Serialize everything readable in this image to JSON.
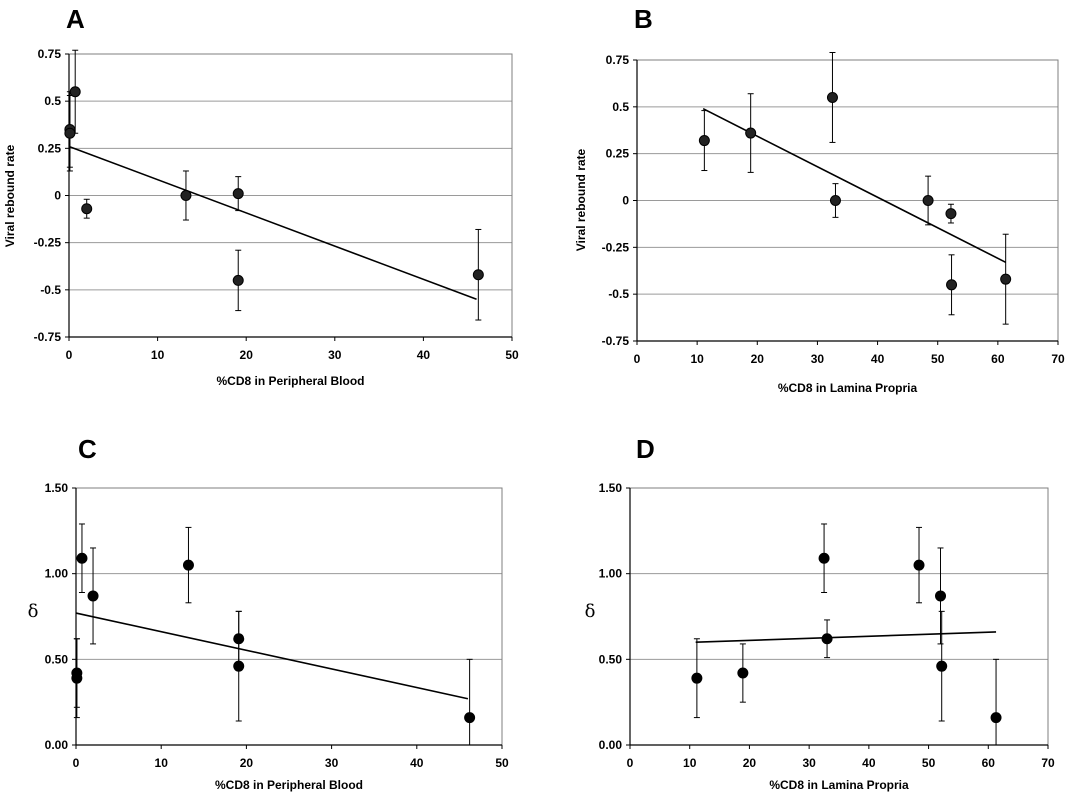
{
  "chart_data": [
    {
      "panel": "A",
      "type": "scatter",
      "xlabel": "%CD8 in Peripheral Blood",
      "ylabel": "Viral rebound rate",
      "xlim": [
        0,
        50
      ],
      "ylim": [
        -0.75,
        0.75
      ],
      "xticks": [
        0,
        10,
        20,
        30,
        40,
        50
      ],
      "xtick_labels": [
        "0",
        "10",
        "20",
        "30",
        "40",
        "50"
      ],
      "yticks": [
        -0.75,
        -0.5,
        -0.25,
        0,
        0.25,
        0.5,
        0.75
      ],
      "ytick_labels": [
        "-0.75",
        "-0.5",
        "-0.25",
        "0",
        "0.25",
        "0.5",
        "0.75"
      ],
      "grid": "horizontal",
      "points": [
        {
          "x": 0.1,
          "y": 0.35,
          "err": 0.2
        },
        {
          "x": 0.1,
          "y": 0.33,
          "err": 0.2
        },
        {
          "x": 0.7,
          "y": 0.55,
          "err": 0.22
        },
        {
          "x": 2.0,
          "y": -0.07,
          "err": 0.05
        },
        {
          "x": 13.2,
          "y": 0.0,
          "err": 0.13
        },
        {
          "x": 19.1,
          "y": 0.01,
          "err": 0.09
        },
        {
          "x": 19.1,
          "y": -0.45,
          "err": 0.16
        },
        {
          "x": 46.2,
          "y": -0.42,
          "err": 0.24
        }
      ],
      "fit": {
        "x": [
          0,
          46
        ],
        "y": [
          0.26,
          -0.55
        ]
      }
    },
    {
      "panel": "B",
      "type": "scatter",
      "xlabel": "%CD8 in Lamina Propria",
      "ylabel": "Viral rebound rate",
      "xlim": [
        0,
        70
      ],
      "ylim": [
        -0.75,
        0.75
      ],
      "xticks": [
        0,
        10,
        20,
        30,
        40,
        50,
        60,
        70
      ],
      "xtick_labels": [
        "0",
        "10",
        "20",
        "30",
        "40",
        "50",
        "60",
        "70"
      ],
      "yticks": [
        -0.75,
        -0.5,
        -0.25,
        0,
        0.25,
        0.5,
        0.75
      ],
      "ytick_labels": [
        "-0.75",
        "-0.5",
        "-0.25",
        "0",
        "0.25",
        "0.5",
        "0.75"
      ],
      "grid": "horizontal",
      "points": [
        {
          "x": 11.2,
          "y": 0.32,
          "err": 0.16
        },
        {
          "x": 18.9,
          "y": 0.36,
          "err": 0.21
        },
        {
          "x": 32.5,
          "y": 0.55,
          "err": 0.24
        },
        {
          "x": 33.0,
          "y": 0.0,
          "err": 0.09
        },
        {
          "x": 48.4,
          "y": 0.0,
          "err": 0.13
        },
        {
          "x": 52.2,
          "y": -0.07,
          "err": 0.05
        },
        {
          "x": 52.3,
          "y": -0.45,
          "err": 0.16
        },
        {
          "x": 61.3,
          "y": -0.42,
          "err": 0.24
        }
      ],
      "fit": {
        "x": [
          11,
          61.3
        ],
        "y": [
          0.49,
          -0.33
        ]
      }
    },
    {
      "panel": "C",
      "type": "scatter",
      "xlabel": "%CD8 in Peripheral Blood",
      "ylabel": "δ",
      "xlim": [
        0,
        50
      ],
      "ylim": [
        0,
        1.5
      ],
      "xticks": [
        0,
        10,
        20,
        30,
        40,
        50
      ],
      "xtick_labels": [
        "0",
        "10",
        "20",
        "30",
        "40",
        "50"
      ],
      "yticks": [
        0,
        0.5,
        1.0,
        1.5
      ],
      "ytick_labels": [
        "0.00",
        "0.50",
        "1.00",
        "1.50"
      ],
      "grid": "horizontal",
      "points": [
        {
          "x": 0.1,
          "y": 0.42,
          "err": 0.2
        },
        {
          "x": 0.1,
          "y": 0.39,
          "err": 0.23
        },
        {
          "x": 0.7,
          "y": 1.09,
          "err": 0.2
        },
        {
          "x": 2.0,
          "y": 0.87,
          "err": 0.28
        },
        {
          "x": 13.2,
          "y": 1.05,
          "err": 0.22
        },
        {
          "x": 19.1,
          "y": 0.62,
          "err": 0.16
        },
        {
          "x": 19.1,
          "y": 0.46,
          "err": 0.32
        },
        {
          "x": 46.2,
          "y": 0.16,
          "err": 0.34
        }
      ],
      "fit": {
        "x": [
          0,
          46
        ],
        "y": [
          0.77,
          0.27
        ]
      }
    },
    {
      "panel": "D",
      "type": "scatter",
      "xlabel": "%CD8 in Lamina Propria",
      "ylabel": "δ",
      "xlim": [
        0,
        70
      ],
      "ylim": [
        0,
        1.5
      ],
      "xticks": [
        0,
        10,
        20,
        30,
        40,
        50,
        60,
        70
      ],
      "xtick_labels": [
        "0",
        "10",
        "20",
        "30",
        "40",
        "50",
        "60",
        "70"
      ],
      "yticks": [
        0,
        0.5,
        1.0,
        1.5
      ],
      "ytick_labels": [
        "0.00",
        "0.50",
        "1.00",
        "1.50"
      ],
      "grid": "horizontal",
      "points": [
        {
          "x": 11.2,
          "y": 0.39,
          "err": 0.23
        },
        {
          "x": 18.9,
          "y": 0.42,
          "err": 0.17
        },
        {
          "x": 32.5,
          "y": 1.09,
          "err": 0.2
        },
        {
          "x": 33.0,
          "y": 0.62,
          "err": 0.11
        },
        {
          "x": 48.4,
          "y": 1.05,
          "err": 0.22
        },
        {
          "x": 52.0,
          "y": 0.87,
          "err": 0.28
        },
        {
          "x": 52.2,
          "y": 0.46,
          "err": 0.32
        },
        {
          "x": 61.3,
          "y": 0.16,
          "err": 0.34
        }
      ],
      "fit": {
        "x": [
          11,
          61.3
        ],
        "y": [
          0.6,
          0.66
        ]
      }
    }
  ]
}
